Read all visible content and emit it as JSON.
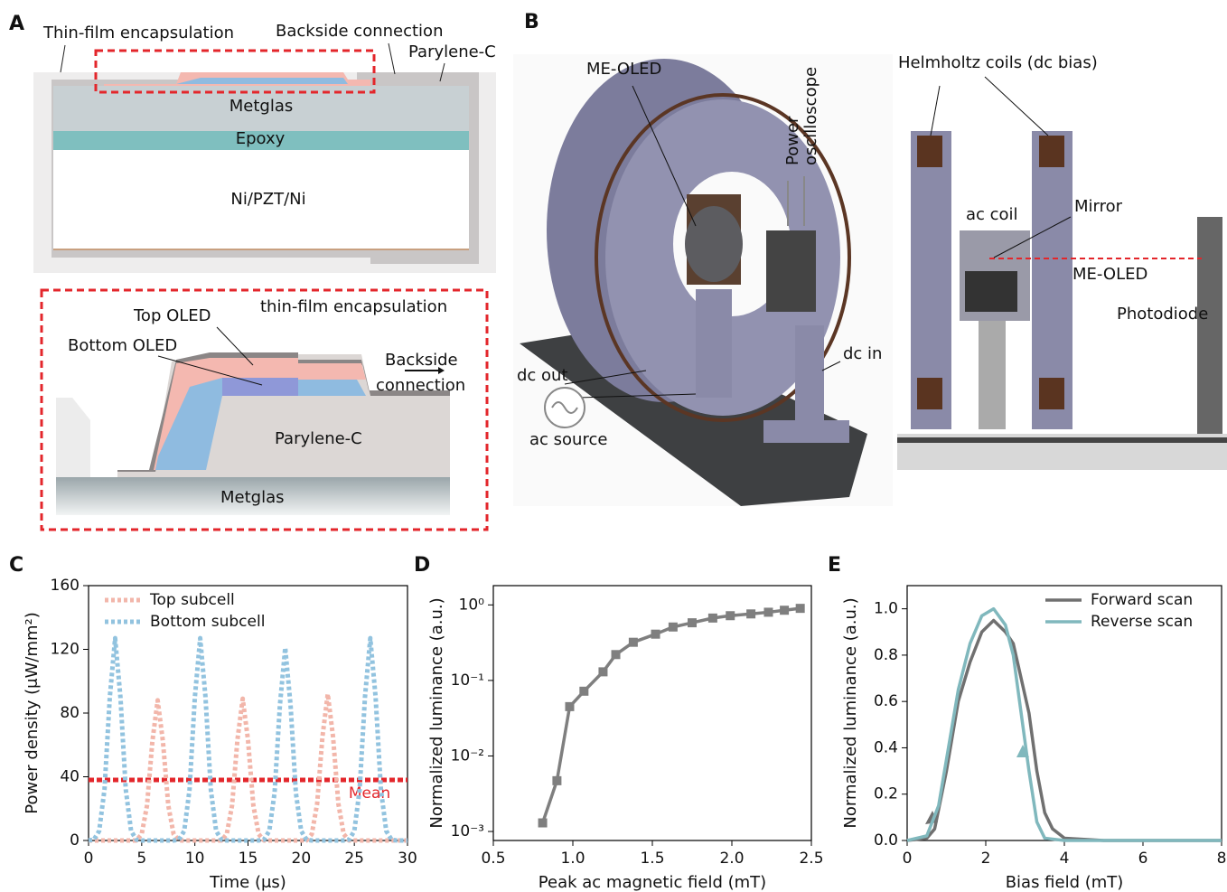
{
  "panel_a": {
    "label": "A",
    "thin_film_encapsulation": "Thin-film encapsulation",
    "backside_connection": "Backside connection",
    "parylene_c": "Parylene-C",
    "metglas": "Metglas",
    "epoxy": "Epoxy",
    "ni_pzt_ni": "Ni/PZT/Ni",
    "inset": {
      "top_oled": "Top OLED",
      "thin_film_encapsulation": "thin-film encapsulation",
      "bottom_oled": "Bottom OLED",
      "backside": "Backside",
      "connection": "connection",
      "parylene_c": "Parylene-C",
      "metglas": "Metglas"
    }
  },
  "panel_b": {
    "label": "B",
    "me_oled": "ME-OLED",
    "power": "Power",
    "oscilloscope": "oscilloscope",
    "dc_out": "dc out",
    "ac_source": "ac source",
    "dc_in": "dc in",
    "helmholtz": "Helmholtz coils (dc bias)",
    "ac_coil": "ac coil",
    "mirror": "Mirror",
    "me_oled_side": "ME-OLED",
    "photodiode": "Photodiode"
  },
  "chart_data": [
    {
      "type": "line",
      "panel": "C",
      "xlabel": "Time (μs)",
      "ylabel": "Power density (μW/mm²)",
      "x": [
        0,
        0.5,
        1,
        1.5,
        2,
        2.5,
        3,
        3.5,
        4,
        4.5,
        5,
        5.5,
        6,
        6.5,
        7,
        7.5,
        8,
        8.5,
        9,
        9.5,
        10,
        10.5,
        11,
        11.5,
        12,
        12.5,
        13,
        13.5,
        14,
        14.5,
        15,
        15.5,
        16,
        16.5,
        17,
        17.5,
        18,
        18.5,
        19,
        19.5,
        20,
        20.5,
        21,
        21.5,
        22,
        22.5,
        23,
        23.5,
        24,
        24.5,
        25,
        25.5,
        26,
        26.5,
        27,
        27.5,
        28,
        28.5,
        29,
        29.5,
        30
      ],
      "series": [
        {
          "name": "Top subcell",
          "color": "#f2b6aa",
          "linestyle": "dashed",
          "values": [
            0,
            0,
            0,
            0,
            0,
            0,
            0,
            0,
            0,
            0,
            4,
            22,
            62,
            88,
            62,
            22,
            4,
            0,
            0,
            0,
            0,
            0,
            0,
            0,
            0,
            0,
            4,
            22,
            63,
            89,
            63,
            22,
            4,
            0,
            0,
            0,
            0,
            0,
            0,
            0,
            0,
            0,
            4,
            23,
            65,
            92,
            65,
            23,
            4,
            0,
            0,
            0,
            0,
            0,
            0,
            0,
            0,
            0,
            0,
            0,
            0
          ]
        },
        {
          "name": "Bottom subcell",
          "color": "#92c3df",
          "linestyle": "dashed",
          "values": [
            0,
            0.5,
            6,
            32,
            90,
            127,
            90,
            32,
            6,
            0.5,
            0,
            0,
            0,
            0,
            0,
            0,
            0,
            0.5,
            6,
            32,
            90,
            127,
            90,
            32,
            6,
            0.5,
            0,
            0,
            0,
            0,
            0,
            0,
            0,
            0.5,
            6,
            30,
            85,
            121,
            85,
            30,
            6,
            0.5,
            0,
            0,
            0,
            0,
            0,
            0,
            0,
            0.5,
            6,
            32,
            90,
            127,
            90,
            32,
            6,
            0.5,
            0,
            0,
            0
          ]
        }
      ],
      "hline": {
        "label": "Mean",
        "value": 38,
        "color": "#e3262b"
      },
      "xlim": [
        0,
        30
      ],
      "xticks": [
        0,
        5,
        10,
        15,
        20,
        25,
        30
      ],
      "ylim": [
        0,
        160
      ],
      "yticks": [
        0,
        40,
        80,
        120,
        160
      ],
      "legend": "upper left"
    },
    {
      "type": "line",
      "panel": "D",
      "xlabel": "Peak ac magnetic field (mT)",
      "ylabel": "Normalized luminance (a.u.)",
      "yscale": "log",
      "x": [
        0.81,
        0.9,
        0.98,
        1.07,
        1.19,
        1.27,
        1.38,
        1.52,
        1.63,
        1.75,
        1.88,
        1.99,
        2.12,
        2.23,
        2.33,
        2.43
      ],
      "series": [
        {
          "color": "#7f7f7f",
          "marker": "square",
          "values": [
            0.0013,
            0.0047,
            0.045,
            0.072,
            0.13,
            0.22,
            0.32,
            0.41,
            0.51,
            0.58,
            0.67,
            0.72,
            0.76,
            0.8,
            0.85,
            0.9
          ]
        }
      ],
      "xlim": [
        0.5,
        2.5
      ],
      "xticks": [
        0.5,
        {
          "value": 1,
          "label": "1.0"
        },
        1.5,
        {
          "value": 2,
          "label": "2.0"
        },
        2.5
      ],
      "ylim": [
        0.00076,
        1.8
      ],
      "yticks": [
        {
          "value": 0.001,
          "label": "10⁻³"
        },
        {
          "value": 0.01,
          "label": "10⁻²"
        },
        {
          "value": 0.1,
          "label": "10⁻¹"
        },
        {
          "value": 1,
          "label": "10⁰"
        }
      ]
    },
    {
      "type": "line",
      "panel": "E",
      "xlabel": "Bias field (mT)",
      "ylabel": "Normalized luminance (a.u.)",
      "series": [
        {
          "name": "Forward scan",
          "color": "#707070",
          "x": [
            0,
            0.5,
            0.7,
            1,
            1.3,
            1.6,
            1.9,
            2.2,
            2.5,
            2.7,
            2.9,
            3.1,
            3.3,
            3.5,
            3.7,
            4,
            5,
            8
          ],
          "values": [
            0,
            0.01,
            0.05,
            0.3,
            0.6,
            0.77,
            0.9,
            0.95,
            0.9,
            0.85,
            0.7,
            0.55,
            0.3,
            0.12,
            0.05,
            0.01,
            0,
            0
          ]
        },
        {
          "name": "Reverse scan",
          "color": "#80b8bd",
          "x": [
            0,
            0.5,
            0.8,
            1,
            1.3,
            1.6,
            1.9,
            2.2,
            2.5,
            2.7,
            2.9,
            3.1,
            3.3,
            3.5,
            4,
            8
          ],
          "values": [
            0,
            0.02,
            0.15,
            0.35,
            0.65,
            0.85,
            0.97,
            1,
            0.93,
            0.8,
            0.55,
            0.3,
            0.08,
            0.01,
            0,
            0
          ]
        }
      ],
      "xlim": [
        0,
        8
      ],
      "xticks": [
        0,
        2,
        4,
        6,
        8
      ],
      "ylim": [
        0,
        1.1
      ],
      "yticks": [
        {
          "value": 0,
          "label": "0.0"
        },
        0.2,
        0.4,
        0.6,
        0.8,
        {
          "value": 1,
          "label": "1.0"
        }
      ],
      "legend": "upper right"
    }
  ]
}
